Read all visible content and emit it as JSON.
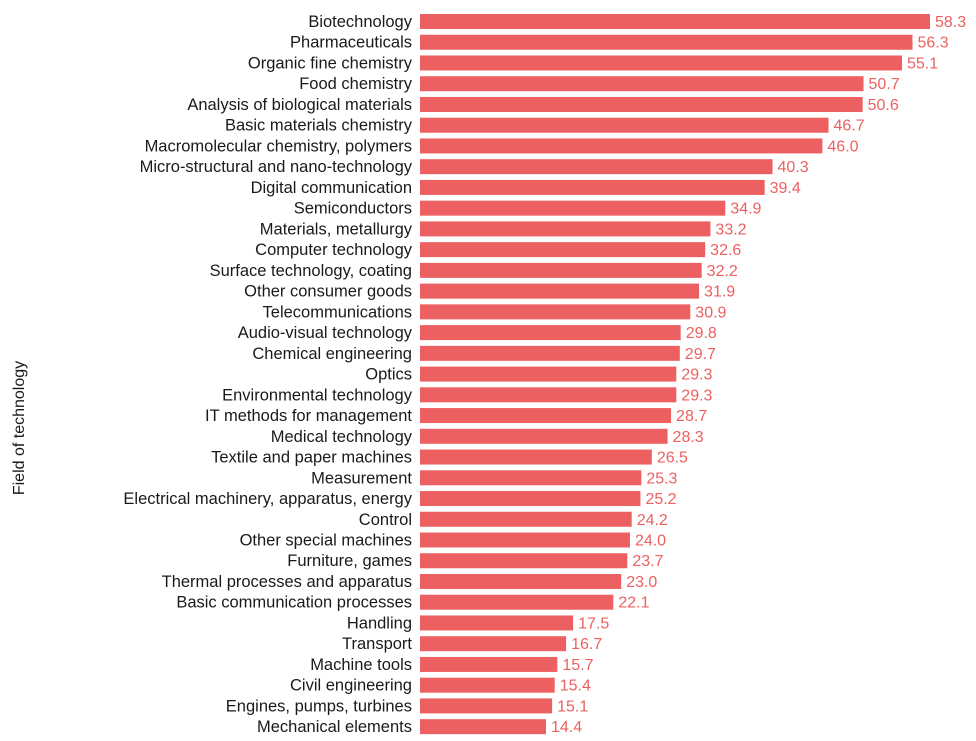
{
  "chart_data": {
    "type": "bar",
    "orientation": "horizontal",
    "title": "",
    "xlabel": "",
    "ylabel": "Field of technology",
    "bar_color": "#ec6061",
    "label_color": "#ec6061",
    "grid": false,
    "legend": "none",
    "xlim": [
      0,
      58.3
    ],
    "categories": [
      "Biotechnology",
      "Pharmaceuticals",
      "Organic fine chemistry",
      "Food chemistry",
      "Analysis of biological materials",
      "Basic materials chemistry",
      "Macromolecular chemistry, polymers",
      "Micro-structural and nano-technology",
      "Digital communication",
      "Semiconductors",
      "Materials, metallurgy",
      "Computer technology",
      "Surface technology, coating",
      "Other consumer goods",
      "Telecommunications",
      "Audio-visual technology",
      "Chemical engineering",
      "Optics",
      "Environmental technology",
      "IT methods for management",
      "Medical technology",
      "Textile and paper machines",
      "Measurement",
      "Electrical machinery, apparatus, energy",
      "Control",
      "Other special machines",
      "Furniture, games",
      "Thermal processes and apparatus",
      "Basic communication processes",
      "Handling",
      "Transport",
      "Machine tools",
      "Civil engineering",
      "Engines, pumps, turbines",
      "Mechanical elements"
    ],
    "values": [
      58.3,
      56.3,
      55.1,
      50.7,
      50.6,
      46.7,
      46.0,
      40.3,
      39.4,
      34.9,
      33.2,
      32.6,
      32.2,
      31.9,
      30.9,
      29.8,
      29.7,
      29.3,
      29.3,
      28.7,
      28.3,
      26.5,
      25.3,
      25.2,
      24.2,
      24.0,
      23.7,
      23.0,
      22.1,
      17.5,
      16.7,
      15.7,
      15.4,
      15.1,
      14.4
    ],
    "value_labels": [
      "58.3",
      "56.3",
      "55.1",
      "50.7",
      "50.6",
      "46.7",
      "46.0",
      "40.3",
      "39.4",
      "34.9",
      "33.2",
      "32.6",
      "32.2",
      "31.9",
      "30.9",
      "29.8",
      "29.7",
      "29.3",
      "29.3",
      "28.7",
      "28.3",
      "26.5",
      "25.3",
      "25.2",
      "24.2",
      "24.0",
      "23.7",
      "23.0",
      "22.1",
      "17.5",
      "16.7",
      "15.7",
      "15.4",
      "15.1",
      "14.4"
    ]
  }
}
